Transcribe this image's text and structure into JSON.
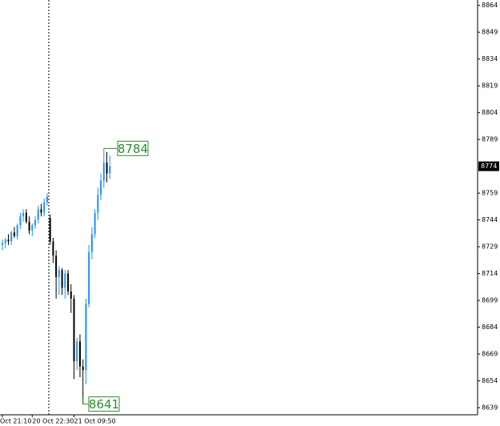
{
  "chart_data": {
    "type": "candlestick",
    "categories": [
      "Oct 21:10",
      null,
      null,
      null,
      null,
      null,
      null,
      null,
      null,
      null,
      "20 Oct 22:30",
      null,
      null,
      null,
      null,
      null,
      null,
      null,
      null,
      null,
      null,
      null,
      null,
      null,
      "21 Oct 09:50",
      null,
      null,
      null,
      null,
      null,
      null,
      null,
      null,
      null,
      null,
      null,
      null
    ],
    "open": [
      8730,
      8731,
      8733,
      8732,
      8737,
      8735,
      8741,
      8746,
      8748,
      8743,
      8738,
      8741,
      8744,
      8750,
      8748,
      8754,
      8745,
      8732,
      8724,
      8712,
      8716,
      8706,
      8714,
      8704,
      8700,
      8665,
      8676,
      8662,
      8660,
      8697,
      8726,
      8736,
      8748,
      8758,
      8766,
      8776,
      8770
    ],
    "high": [
      8733,
      8734,
      8736,
      8738,
      8740,
      8742,
      8748,
      8750,
      8750,
      8746,
      8742,
      8746,
      8752,
      8753,
      8756,
      8759,
      8747,
      8734,
      8727,
      8718,
      8717,
      8716,
      8716,
      8708,
      8702,
      8678,
      8680,
      8666,
      8700,
      8730,
      8740,
      8750,
      8762,
      8770,
      8784,
      8782,
      8780
    ],
    "low": [
      8727,
      8728,
      8730,
      8730,
      8734,
      8733,
      8739,
      8743,
      8742,
      8736,
      8735,
      8739,
      8742,
      8746,
      8746,
      8752,
      8730,
      8720,
      8700,
      8702,
      8702,
      8700,
      8702,
      8692,
      8655,
      8660,
      8656,
      8641,
      8652,
      8695,
      8722,
      8734,
      8744,
      8755,
      8762,
      8765,
      8767
    ],
    "close": [
      8731,
      8733,
      8732,
      8737,
      8735,
      8741,
      8746,
      8748,
      8743,
      8738,
      8741,
      8744,
      8750,
      8748,
      8754,
      8757,
      8732,
      8724,
      8712,
      8716,
      8706,
      8714,
      8704,
      8700,
      8665,
      8676,
      8662,
      8660,
      8697,
      8726,
      8736,
      8748,
      8758,
      8766,
      8776,
      8770,
      8774
    ],
    "up_color": "#1e90ff",
    "down_color": "#000000",
    "ylim": [
      8635,
      8867
    ],
    "yticks": [
      8864,
      8849,
      8834,
      8819,
      8804,
      8789,
      8759,
      8744,
      8729,
      8714,
      8699,
      8684,
      8669,
      8654,
      8639
    ],
    "last_price": 8774,
    "max_label": 8784,
    "min_label": 8641,
    "label_color": "#2e8b2e"
  }
}
